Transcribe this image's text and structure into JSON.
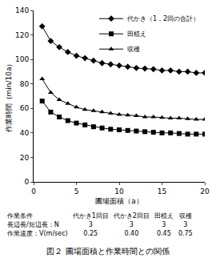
{
  "chart_data": {
    "type": "line",
    "title": "図２ 圃場面積と作業時間との関係",
    "x_label": "圃場面積（a）",
    "y_label": "作業時間（min/10a）",
    "x": [
      1,
      2,
      3,
      4,
      5,
      6,
      7,
      8,
      9,
      10,
      11,
      12,
      13,
      14,
      15,
      16,
      17,
      18,
      19,
      20
    ],
    "series": [
      {
        "name": "代かき（1，2回の合計）",
        "color": "#000000",
        "marker": "diamond",
        "values": [
          127,
          115,
          110,
          106,
          103,
          101,
          99,
          97,
          96,
          95,
          94,
          93,
          92.5,
          92,
          91,
          91,
          90,
          90,
          89,
          89
        ]
      },
      {
        "name": "田植え",
        "color": "#000000",
        "marker": "square",
        "values": [
          66,
          57,
          53,
          50,
          48,
          46.5,
          45,
          44,
          43,
          42.5,
          42,
          41.5,
          41,
          40.5,
          40,
          40,
          39.5,
          39,
          39,
          39
        ]
      },
      {
        "name": "収穫",
        "color": "#000000",
        "marker": "triangle-up",
        "values": [
          84,
          73,
          67,
          64,
          61,
          59,
          58,
          57,
          56,
          55,
          54.5,
          54,
          53,
          53,
          52.5,
          52,
          52,
          51.5,
          51,
          51
        ]
      }
    ],
    "xlim": [
      0,
      20
    ],
    "xticks": [
      0,
      5,
      10,
      15,
      20
    ],
    "ylim": [
      0,
      140
    ],
    "yticks": [
      0,
      20,
      40,
      60,
      80,
      100,
      120,
      140
    ],
    "grid": false,
    "legend": "top right"
  },
  "conditions": {
    "header": [
      "作業条件",
      "代かき1回目",
      "代かき2回目",
      "田植え",
      "収穫"
    ],
    "rows": [
      [
        "長辺長/短辺長：N",
        "3",
        "3",
        "3",
        "3"
      ],
      [
        "作業速度：V(m/sec)",
        "0.25",
        "0.40",
        "0.45",
        "0.75"
      ]
    ]
  }
}
